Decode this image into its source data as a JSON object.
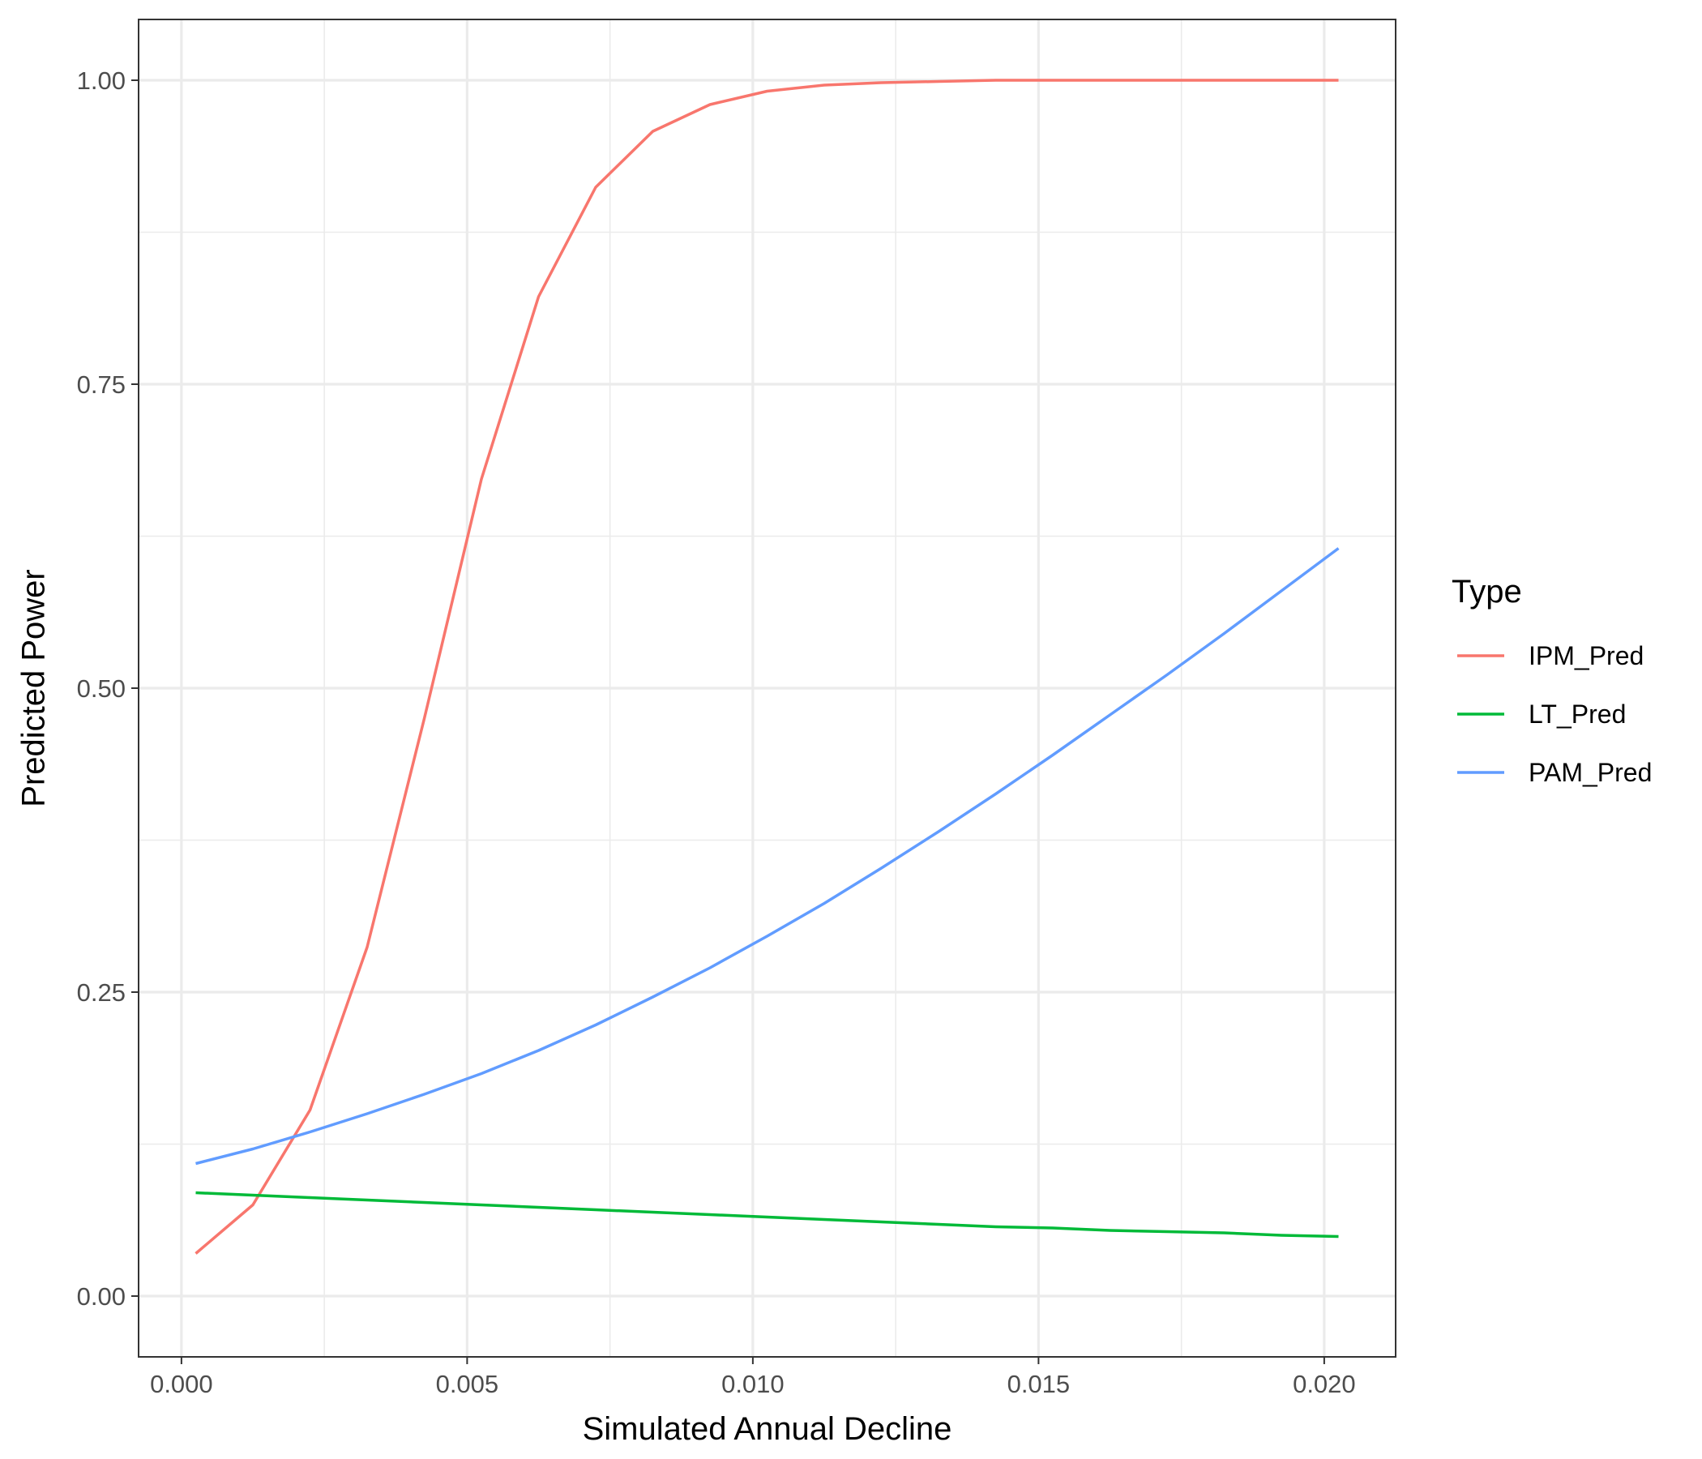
{
  "chart_data": {
    "type": "line",
    "title": "",
    "xlabel": "Simulated Annual Decline",
    "ylabel": "Predicted Power",
    "xlim": [
      -0.00075,
      0.02125
    ],
    "ylim": [
      -0.05,
      1.05
    ],
    "x_ticks": [
      0.0,
      0.005,
      0.01,
      0.015,
      0.02
    ],
    "x_tick_labels": [
      "0.000",
      "0.005",
      "0.010",
      "0.015",
      "0.020"
    ],
    "y_ticks": [
      0.0,
      0.25,
      0.5,
      0.75,
      1.0
    ],
    "y_tick_labels": [
      "0.00",
      "0.25",
      "0.50",
      "0.75",
      "1.00"
    ],
    "x_minor_ticks": [
      0.0025,
      0.0075,
      0.0125,
      0.0175
    ],
    "y_minor_ticks": [
      0.125,
      0.375,
      0.625,
      0.875
    ],
    "grid": true,
    "legend": {
      "title": "Type",
      "position": "right"
    },
    "x": [
      0.00025,
      0.00125,
      0.00225,
      0.00325,
      0.00425,
      0.00525,
      0.00625,
      0.00725,
      0.00825,
      0.00925,
      0.01025,
      0.01125,
      0.01225,
      0.01325,
      0.01425,
      0.01525,
      0.01625,
      0.01725,
      0.01825,
      0.01925,
      0.02025
    ],
    "series": [
      {
        "name": "IPM_Pred",
        "color": "#F8766D",
        "values": [
          0.035,
          0.075,
          0.153,
          0.287,
          0.475,
          0.672,
          0.822,
          0.912,
          0.958,
          0.98,
          0.991,
          0.996,
          0.998,
          0.999,
          1.0,
          1.0,
          1.0,
          1.0,
          1.0,
          1.0,
          1.0
        ]
      },
      {
        "name": "LT_Pred",
        "color": "#00BA38",
        "values": [
          0.085,
          0.083,
          0.081,
          0.079,
          0.077,
          0.075,
          0.073,
          0.071,
          0.069,
          0.067,
          0.065,
          0.063,
          0.061,
          0.059,
          0.057,
          0.056,
          0.054,
          0.053,
          0.052,
          0.05,
          0.049
        ]
      },
      {
        "name": "PAM_Pred",
        "color": "#619CFF",
        "values": [
          0.109,
          0.121,
          0.135,
          0.15,
          0.166,
          0.183,
          0.202,
          0.223,
          0.246,
          0.27,
          0.296,
          0.323,
          0.352,
          0.382,
          0.413,
          0.445,
          0.478,
          0.511,
          0.545,
          0.58,
          0.615
        ]
      }
    ]
  }
}
